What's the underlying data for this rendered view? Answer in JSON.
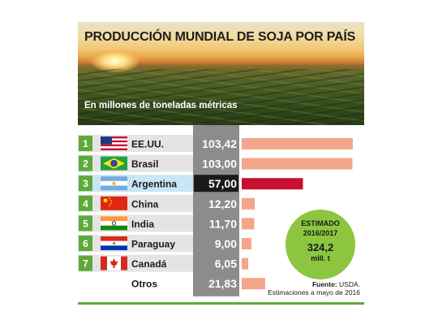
{
  "chart_data": {
    "type": "bar",
    "orientation": "horizontal",
    "title": "PRODUCCIÓN MUNDIAL DE SOJA POR PAÍS",
    "subtitle": "En millones de toneladas métricas",
    "rows": [
      {
        "rank": "1",
        "country": "EE.UU.",
        "value": 103.42,
        "label": "103,42",
        "flag": "usa-flag",
        "highlight": false
      },
      {
        "rank": "2",
        "country": "Brasil",
        "value": 103.0,
        "label": "103,00",
        "flag": "brazil-flag",
        "highlight": false
      },
      {
        "rank": "3",
        "country": "Argentina",
        "value": 57.0,
        "label": "57,00",
        "flag": "argentina-flag",
        "highlight": true
      },
      {
        "rank": "4",
        "country": "China",
        "value": 12.2,
        "label": "12,20",
        "flag": "china-flag",
        "highlight": false
      },
      {
        "rank": "5",
        "country": "India",
        "value": 11.7,
        "label": "11,70",
        "flag": "india-flag",
        "highlight": false
      },
      {
        "rank": "6",
        "country": "Paraguay",
        "value": 9.0,
        "label": "9,00",
        "flag": "paraguay-flag",
        "highlight": false
      },
      {
        "rank": "7",
        "country": "Canadá",
        "value": 6.05,
        "label": "6,05",
        "flag": "canada-flag",
        "highlight": false
      },
      {
        "rank": "",
        "country": "Otros",
        "value": 21.83,
        "label": "21,83",
        "flag": "",
        "highlight": false
      }
    ],
    "xlim": [
      0,
      103.42
    ],
    "grid": false,
    "legend": "none"
  },
  "estimate": {
    "label": "ESTIMADO",
    "period": "2016/2017",
    "value": "324,2",
    "unit": "mill. t"
  },
  "source": {
    "label": "Fuente:",
    "name": "USDA.",
    "note": "Estimaciones a mayo de 2016"
  },
  "colors": {
    "bar": "#f4a58a",
    "bar_highlight": "#c8102e",
    "row_band": "#e4e4e4",
    "row_highlight_band": "#c9e6f6",
    "badge": "#5fa93b",
    "value_column": "#8c8c8c",
    "value_highlight": "#1a1a1a",
    "estimate_circle": "#8cc63f",
    "rule": "#5fa93b"
  }
}
